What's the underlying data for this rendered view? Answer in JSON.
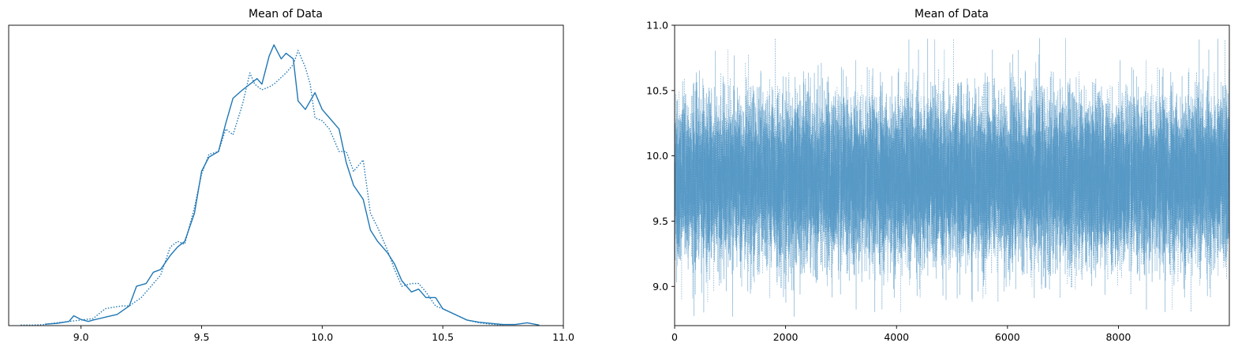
{
  "chart_data": [
    {
      "type": "line",
      "title": "Mean of Data",
      "xlabel": "",
      "ylabel": "",
      "xlim": [
        8.7,
        11.0
      ],
      "ylim": [
        0,
        1.07
      ],
      "y_ticks_shown": false,
      "x_ticks": [
        9.0,
        9.5,
        10.0,
        10.5,
        11.0
      ],
      "x_tick_labels": [
        "9.0",
        "9.5",
        "10.0",
        "10.5",
        "11.0"
      ],
      "grid": false,
      "color": "#1f77b4",
      "series": [
        {
          "style": "solid",
          "x": [
            8.85,
            8.9,
            8.95,
            8.97,
            9.0,
            9.03,
            9.05,
            9.1,
            9.15,
            9.2,
            9.23,
            9.27,
            9.3,
            9.33,
            9.37,
            9.4,
            9.43,
            9.47,
            9.5,
            9.53,
            9.57,
            9.6,
            9.63,
            9.67,
            9.7,
            9.73,
            9.75,
            9.78,
            9.8,
            9.83,
            9.85,
            9.88,
            9.9,
            9.93,
            9.97,
            10.0,
            10.03,
            10.07,
            10.1,
            10.13,
            10.17,
            10.2,
            10.23,
            10.27,
            10.3,
            10.33,
            10.37,
            10.4,
            10.43,
            10.47,
            10.5,
            10.55,
            10.6,
            10.65,
            10.7,
            10.75,
            10.8,
            10.85,
            10.9
          ],
          "y": [
            0.005,
            0.008,
            0.015,
            0.035,
            0.022,
            0.015,
            0.02,
            0.03,
            0.04,
            0.07,
            0.14,
            0.15,
            0.19,
            0.2,
            0.25,
            0.28,
            0.3,
            0.4,
            0.55,
            0.6,
            0.62,
            0.72,
            0.81,
            0.84,
            0.86,
            0.88,
            0.86,
            0.96,
            1.0,
            0.95,
            0.97,
            0.95,
            0.8,
            0.77,
            0.83,
            0.77,
            0.74,
            0.7,
            0.58,
            0.5,
            0.45,
            0.34,
            0.3,
            0.26,
            0.22,
            0.16,
            0.12,
            0.13,
            0.1,
            0.1,
            0.06,
            0.04,
            0.02,
            0.012,
            0.008,
            0.004,
            0.004,
            0.01,
            0.002
          ]
        },
        {
          "style": "dotted",
          "x": [
            8.75,
            8.8,
            8.85,
            8.9,
            8.95,
            9.0,
            9.05,
            9.1,
            9.13,
            9.17,
            9.2,
            9.25,
            9.3,
            9.33,
            9.37,
            9.4,
            9.43,
            9.47,
            9.5,
            9.53,
            9.57,
            9.6,
            9.63,
            9.67,
            9.7,
            9.72,
            9.75,
            9.78,
            9.8,
            9.85,
            9.88,
            9.9,
            9.93,
            9.95,
            9.97,
            10.0,
            10.03,
            10.07,
            10.1,
            10.13,
            10.17,
            10.2,
            10.23,
            10.27,
            10.3,
            10.33,
            10.37,
            10.4,
            10.43,
            10.47,
            10.5,
            10.55,
            10.6,
            10.65,
            10.7,
            10.75
          ],
          "y": [
            0.002,
            0.002,
            0.004,
            0.01,
            0.015,
            0.02,
            0.025,
            0.06,
            0.065,
            0.07,
            0.07,
            0.1,
            0.15,
            0.18,
            0.28,
            0.3,
            0.29,
            0.42,
            0.54,
            0.61,
            0.62,
            0.7,
            0.68,
            0.79,
            0.9,
            0.86,
            0.84,
            0.85,
            0.86,
            0.9,
            0.93,
            0.98,
            0.92,
            0.86,
            0.74,
            0.73,
            0.7,
            0.62,
            0.62,
            0.55,
            0.59,
            0.4,
            0.35,
            0.27,
            0.2,
            0.14,
            0.15,
            0.15,
            0.12,
            0.07,
            0.06,
            0.04,
            0.02,
            0.01,
            0.005,
            0.002
          ]
        }
      ]
    },
    {
      "type": "line",
      "title": "Mean of Data",
      "xlabel": "",
      "ylabel": "",
      "xlim": [
        0,
        9999
      ],
      "ylim": [
        8.7,
        11.0
      ],
      "x_ticks": [
        0,
        2000,
        4000,
        6000,
        8000
      ],
      "x_tick_labels": [
        "0",
        "2000",
        "4000",
        "6000",
        "8000"
      ],
      "y_ticks": [
        9.0,
        9.5,
        10.0,
        10.5,
        11.0
      ],
      "y_tick_labels": [
        "9.0",
        "9.5",
        "10.0",
        "10.5",
        "11.0"
      ],
      "grid": false,
      "color": "#1f77b4",
      "opacity": 0.5,
      "n_draws": 10000,
      "center": 9.82,
      "spread_sd": 0.3,
      "observed_min": 8.77,
      "observed_max": 10.9,
      "series": [
        {
          "style": "solid"
        },
        {
          "style": "dotted"
        }
      ]
    }
  ]
}
